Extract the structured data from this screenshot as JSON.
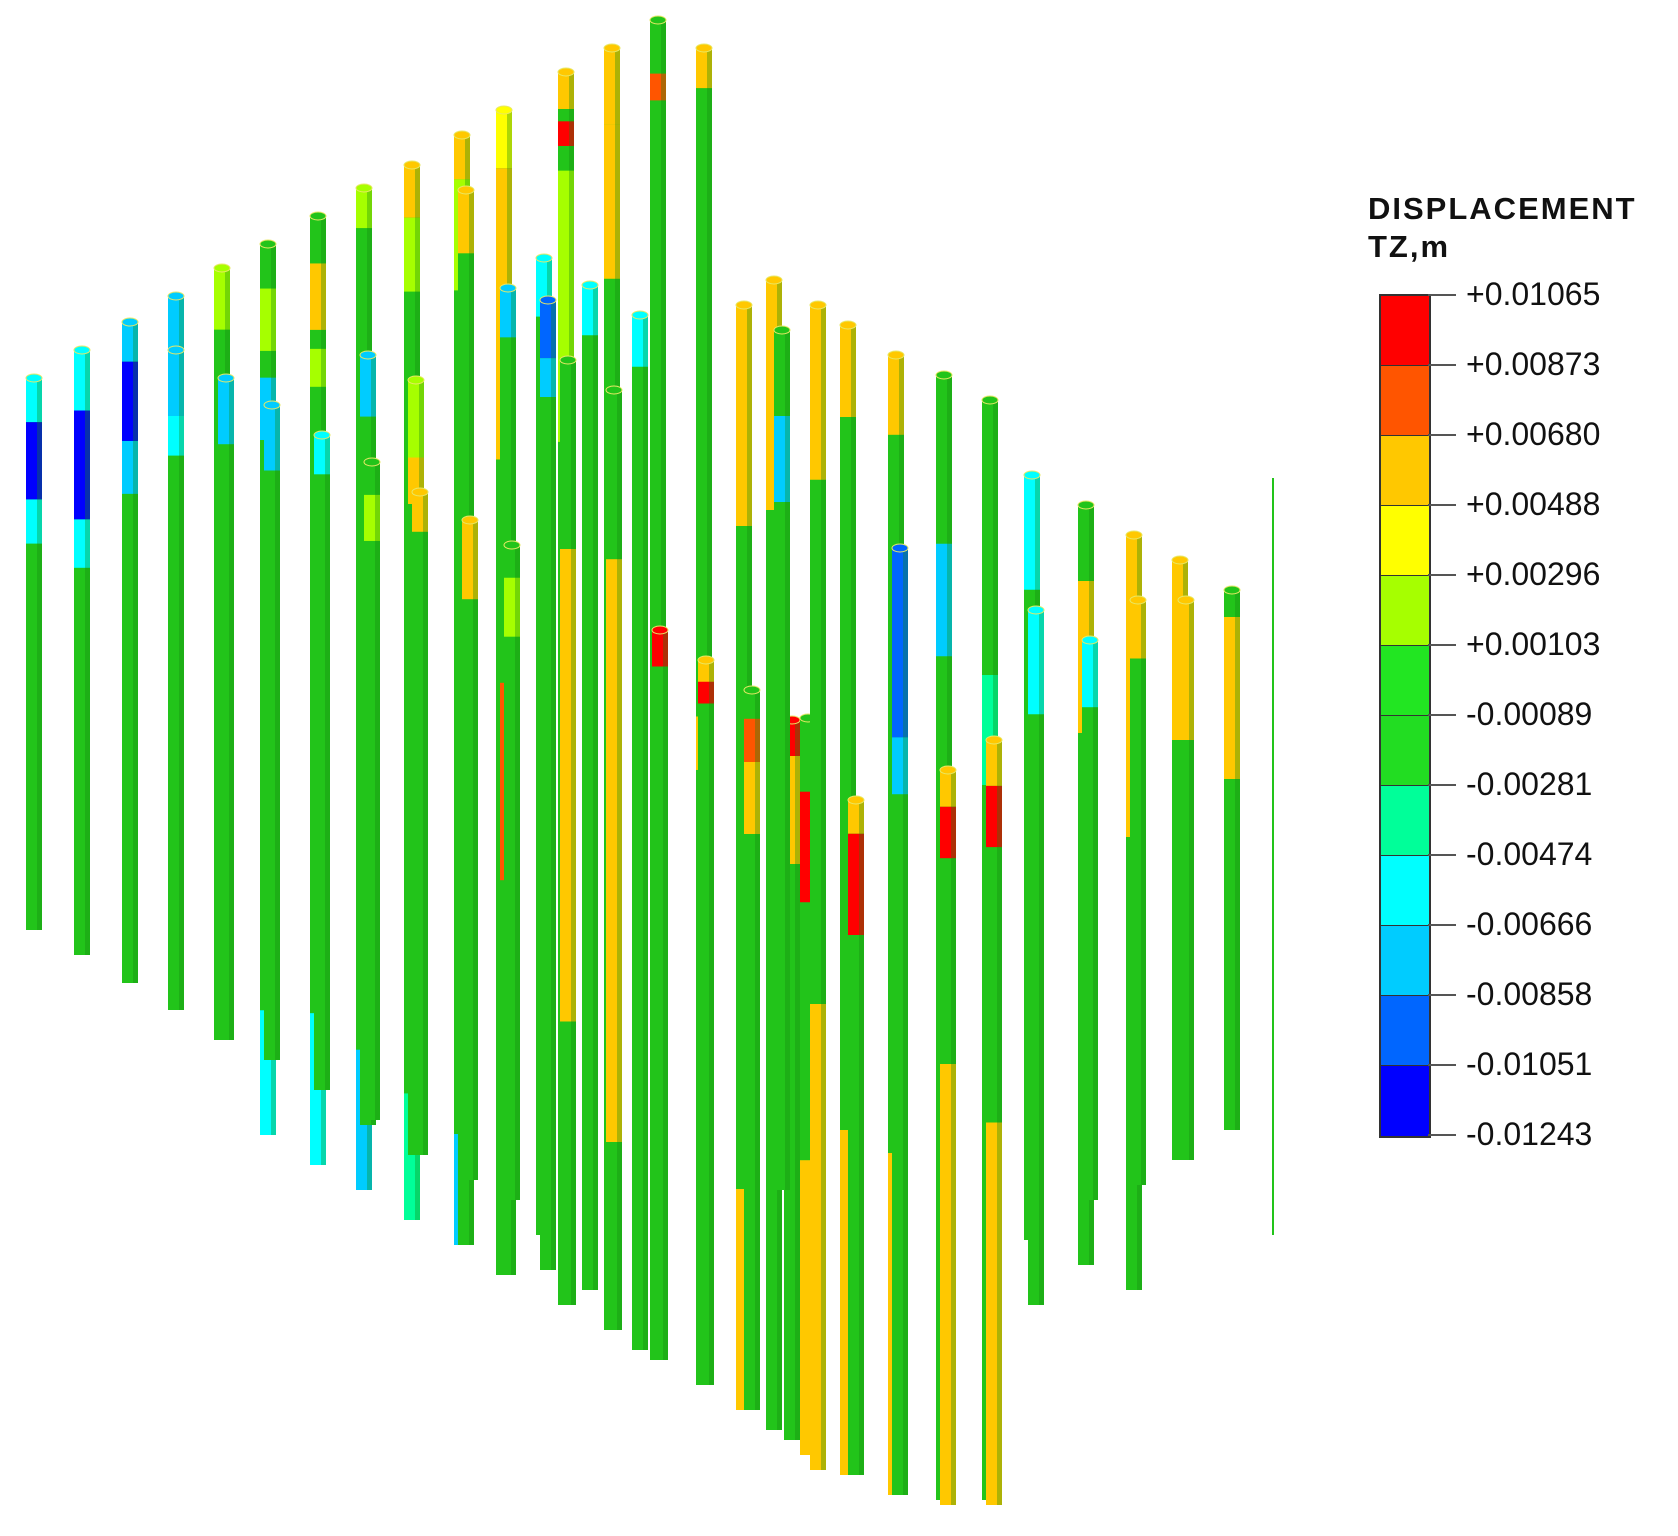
{
  "legend": {
    "title_line1": "DISPLACEMENT",
    "title_line2": "TZ,m",
    "labels": [
      "+0.01065",
      "+0.00873",
      "+0.00680",
      "+0.00488",
      "+0.00296",
      "+0.00103",
      "-0.00089",
      "-0.00281",
      "-0.00474",
      "-0.00666",
      "-0.00858",
      "-0.01051",
      "-0.01243"
    ],
    "band_colors": [
      "#ff0000",
      "#ff5500",
      "#ffc800",
      "#ffff00",
      "#a6ff00",
      "#22e622",
      "#22dd22",
      "#00ff99",
      "#00ffff",
      "#00ccff",
      "#0066ff",
      "#0000ff"
    ]
  },
  "colors": {
    "pile_base": "#22c41a",
    "pile_shade": "#138a10",
    "axis_line": "#22c41a"
  },
  "chart_data": {
    "type": "3d-pile-displacement-contour",
    "quantity": "DISPLACEMENT TZ",
    "unit": "m",
    "scale_max": 0.01065,
    "scale_min": -0.01243,
    "legend_placement": "right",
    "pile_count": 52,
    "notable_regions": [
      {
        "area": "left piles, upper section",
        "value_range": [
          -0.01243,
          -0.00666
        ]
      },
      {
        "area": "center-right piles, middle section",
        "value_range": [
          -0.01243,
          -0.00666
        ]
      },
      {
        "area": "center piles, middle section",
        "value_range": [
          0.00873,
          0.01065
        ]
      },
      {
        "area": "lower-center piles, bottom section",
        "value_range": [
          0.00296,
          0.0068
        ]
      }
    ]
  }
}
